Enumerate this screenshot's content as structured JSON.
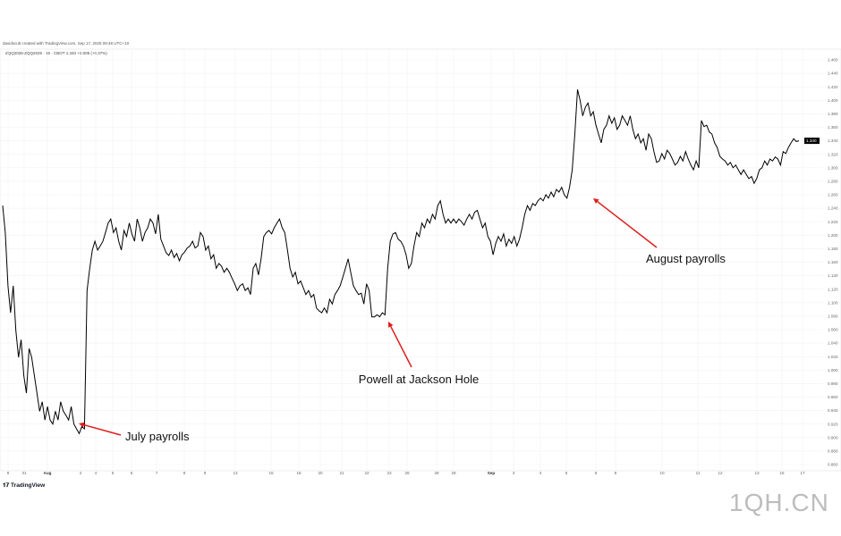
{
  "header": {
    "credit": "davidscutt created with TradingView.com, Sep 17, 2025 09:48 UTC+10",
    "symbol_line": "ZQQ2026-ZQQ2025 · 15 · CBOT  1.340  +0.005 (+0.37%)"
  },
  "branding": {
    "logo_text": "TradingView",
    "watermark": "1QH.CN"
  },
  "chart_data": {
    "type": "line",
    "title": "",
    "xlabel": "",
    "ylabel": "",
    "ylim": [
      0.86,
      1.46
    ],
    "grid": true,
    "line_color": "#000000",
    "last_price": "1.340",
    "last_price_value": 1.34,
    "x_tick_labels": [
      "8",
      "31",
      "Aug",
      "2",
      "4",
      "5",
      "6",
      "7",
      "8",
      "9",
      "13",
      "15",
      "18",
      "20",
      "21",
      "22",
      "23",
      "26",
      "28",
      "29",
      "Sep",
      "3",
      "4",
      "5",
      "6",
      "8",
      "10",
      "11",
      "12",
      "13",
      "16",
      "17"
    ],
    "y_tick_labels": [
      "1.460",
      "1.440",
      "1.420",
      "1.400",
      "1.380",
      "1.360",
      "1.340",
      "1.320",
      "1.300",
      "1.280",
      "1.260",
      "1.240",
      "1.220",
      "1.200",
      "1.180",
      "1.160",
      "1.140",
      "1.120",
      "1.100",
      "1.080",
      "1.060",
      "1.040",
      "1.020",
      "1.000",
      "0.980",
      "0.960",
      "0.940",
      "0.920",
      "0.900",
      "0.880",
      "0.860"
    ],
    "values": [
      1.244,
      1.204,
      1.125,
      1.085,
      1.125,
      1.059,
      1.019,
      1.045,
      0.992,
      0.966,
      1.032,
      1.019,
      0.992,
      0.966,
      0.939,
      0.953,
      0.926,
      0.946,
      0.926,
      0.92,
      0.939,
      0.926,
      0.953,
      0.939,
      0.933,
      0.926,
      0.946,
      0.92,
      0.913,
      0.906,
      0.916,
      0.913,
      1.118,
      1.151,
      1.178,
      1.191,
      1.178,
      1.184,
      1.191,
      1.204,
      1.218,
      1.224,
      1.204,
      1.211,
      1.191,
      1.178,
      1.207,
      1.198,
      1.218,
      1.202,
      1.191,
      1.224,
      1.211,
      1.191,
      1.204,
      1.211,
      1.224,
      1.218,
      1.202,
      1.231,
      1.194,
      1.184,
      1.174,
      1.17,
      1.178,
      1.167,
      1.173,
      1.162,
      1.171,
      1.175,
      1.181,
      1.184,
      1.191,
      1.181,
      1.184,
      1.204,
      1.198,
      1.178,
      1.184,
      1.165,
      1.171,
      1.151,
      1.158,
      1.154,
      1.145,
      1.151,
      1.145,
      1.136,
      1.128,
      1.118,
      1.125,
      1.128,
      1.118,
      1.122,
      1.112,
      1.151,
      1.158,
      1.141,
      1.165,
      1.198,
      1.204,
      1.207,
      1.202,
      1.211,
      1.218,
      1.224,
      1.211,
      1.204,
      1.178,
      1.151,
      1.138,
      1.145,
      1.128,
      1.132,
      1.122,
      1.112,
      1.118,
      1.108,
      1.112,
      1.092,
      1.088,
      1.085,
      1.092,
      1.085,
      1.105,
      1.098,
      1.112,
      1.118,
      1.125,
      1.138,
      1.151,
      1.165,
      1.145,
      1.125,
      1.118,
      1.112,
      1.114,
      1.098,
      1.128,
      1.118,
      1.079,
      1.079,
      1.082,
      1.079,
      1.085,
      1.082,
      1.151,
      1.191,
      1.202,
      1.204,
      1.194,
      1.191,
      1.184,
      1.171,
      1.151,
      1.158,
      1.184,
      1.204,
      1.198,
      1.218,
      1.211,
      1.224,
      1.218,
      1.231,
      1.224,
      1.244,
      1.251,
      1.231,
      1.218,
      1.224,
      1.218,
      1.224,
      1.218,
      1.224,
      1.22,
      1.215,
      1.224,
      1.231,
      1.224,
      1.234,
      1.237,
      1.224,
      1.211,
      1.218,
      1.198,
      1.191,
      1.171,
      1.188,
      1.198,
      1.191,
      1.202,
      1.184,
      1.194,
      1.188,
      1.198,
      1.184,
      1.194,
      1.211,
      1.231,
      1.244,
      1.237,
      1.247,
      1.244,
      1.251,
      1.255,
      1.251,
      1.26,
      1.255,
      1.264,
      1.257,
      1.268,
      1.264,
      1.271,
      1.26,
      1.255,
      1.271,
      1.297,
      1.35,
      1.416,
      1.4,
      1.377,
      1.39,
      1.396,
      1.377,
      1.383,
      1.363,
      1.35,
      1.337,
      1.357,
      1.363,
      1.377,
      1.366,
      1.374,
      1.357,
      1.363,
      1.377,
      1.37,
      1.363,
      1.377,
      1.357,
      1.343,
      1.35,
      1.337,
      1.343,
      1.326,
      1.35,
      1.343,
      1.324,
      1.308,
      1.31,
      1.321,
      1.313,
      1.326,
      1.321,
      1.313,
      1.304,
      1.308,
      1.317,
      1.31,
      1.324,
      1.313,
      1.304,
      1.297,
      1.31,
      1.3,
      1.37,
      1.361,
      1.363,
      1.353,
      1.35,
      1.337,
      1.33,
      1.317,
      1.313,
      1.31,
      1.304,
      1.308,
      1.3,
      1.304,
      1.297,
      1.29,
      1.297,
      1.29,
      1.284,
      1.287,
      1.277,
      1.284,
      1.297,
      1.3,
      1.31,
      1.304,
      1.313,
      1.31,
      1.316,
      1.313,
      1.304,
      1.324,
      1.321,
      1.33,
      1.337,
      1.343,
      1.339,
      1.34
    ],
    "annotations": [
      {
        "text": "July payrolls",
        "arrow_color": "#e01e1e"
      },
      {
        "text": "Powell at Jackson Hole",
        "arrow_color": "#e01e1e"
      },
      {
        "text": "August payrolls",
        "arrow_color": "#e01e1e"
      }
    ]
  }
}
